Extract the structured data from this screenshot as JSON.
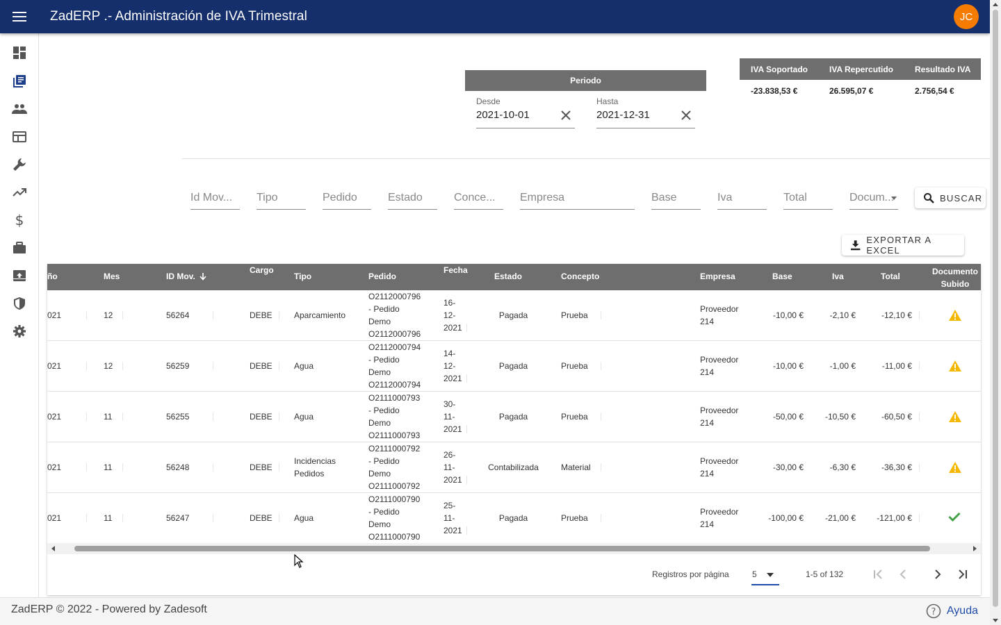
{
  "app": {
    "title": "ZadERP .- Administración de IVA Trimestral",
    "user_initials": "JC"
  },
  "sidebar": {
    "items": [
      {
        "icon": "dashboard-icon"
      },
      {
        "icon": "library-books-icon"
      },
      {
        "icon": "people-icon"
      },
      {
        "icon": "web-icon"
      },
      {
        "icon": "wrench-icon"
      },
      {
        "icon": "trending-up-icon"
      },
      {
        "icon": "dollar-icon"
      },
      {
        "icon": "briefcase-icon"
      },
      {
        "icon": "archive-icon"
      },
      {
        "icon": "shield-icon"
      },
      {
        "icon": "gear-icon"
      }
    ]
  },
  "periodo": {
    "title": "Periodo",
    "desde_label": "Desde",
    "desde_value": "2021-10-01",
    "hasta_label": "Hasta",
    "hasta_value": "2021-12-31"
  },
  "iva_summary": {
    "headers": [
      "IVA Soportado",
      "IVA Repercutido",
      "Resultado IVA"
    ],
    "values": [
      "-23.838,53 €",
      "26.595,07 €",
      "2.756,54 €"
    ]
  },
  "filters": {
    "labels": [
      "Id Mov...",
      "Tipo",
      "Pedido",
      "Estado",
      "Conce...",
      "Empresa",
      "Base",
      "Iva",
      "Total",
      "Docum..."
    ],
    "search_button": "BUSCAR",
    "export_button": "EXPORTAR A EXCEL"
  },
  "table": {
    "headers": {
      "anio": "ño",
      "mes": "Mes",
      "idmov": "ID Mov.",
      "cargo": "Cargo",
      "tipo": "Tipo",
      "pedido": "Pedido",
      "fecha": "Fecha",
      "estado": "Estado",
      "concepto": "Concepto",
      "empresa": "Empresa",
      "base": "Base",
      "iva": "Iva",
      "total": "Total",
      "doc1": "Documento",
      "doc2": "Subido"
    },
    "rows": [
      {
        "anio": "021",
        "mes": "12",
        "idmov": "56264",
        "cargo": "DEBE",
        "tipo1": "Aparcamiento",
        "tipo2": "",
        "ped1": "O2112000796",
        "ped2": "- Pedido",
        "ped3": "Demo",
        "ped4": "O2112000796",
        "f1": "16-",
        "f2": "12-",
        "f3": "2021",
        "estado": "Pagada",
        "concepto": "Prueba",
        "emp1": "Proveedor",
        "emp2": "214",
        "base": "-10,00 €",
        "iva": "-2,10 €",
        "total": "-12,10 €",
        "doc": "warning"
      },
      {
        "anio": "021",
        "mes": "12",
        "idmov": "56259",
        "cargo": "DEBE",
        "tipo1": "Agua",
        "tipo2": "",
        "ped1": "O2112000794",
        "ped2": "- Pedido",
        "ped3": "Demo",
        "ped4": "O2112000794",
        "f1": "14-",
        "f2": "12-",
        "f3": "2021",
        "estado": "Pagada",
        "concepto": "Prueba",
        "emp1": "Proveedor",
        "emp2": "214",
        "base": "-10,00 €",
        "iva": "-1,00 €",
        "total": "-11,00 €",
        "doc": "warning"
      },
      {
        "anio": "021",
        "mes": "11",
        "idmov": "56255",
        "cargo": "DEBE",
        "tipo1": "Agua",
        "tipo2": "",
        "ped1": "O2111000793",
        "ped2": "- Pedido",
        "ped3": "Demo",
        "ped4": "O2111000793",
        "f1": "30-",
        "f2": "11-",
        "f3": "2021",
        "estado": "Pagada",
        "concepto": "Prueba",
        "emp1": "Proveedor",
        "emp2": "214",
        "base": "-50,00 €",
        "iva": "-10,50 €",
        "total": "-60,50 €",
        "doc": "warning"
      },
      {
        "anio": "021",
        "mes": "11",
        "idmov": "56248",
        "cargo": "DEBE",
        "tipo1": "Incidencias",
        "tipo2": "Pedidos",
        "ped1": "O2111000792",
        "ped2": "- Pedido",
        "ped3": "Demo",
        "ped4": "O2111000792",
        "f1": "26-",
        "f2": "11-",
        "f3": "2021",
        "estado": "Contabilizada",
        "concepto": "Material",
        "emp1": "Proveedor",
        "emp2": "214",
        "base": "-30,00 €",
        "iva": "-6,30 €",
        "total": "-36,30 €",
        "doc": "warning"
      },
      {
        "anio": "021",
        "mes": "11",
        "idmov": "56247",
        "cargo": "DEBE",
        "tipo1": "Agua",
        "tipo2": "",
        "ped1": "O2111000790",
        "ped2": "- Pedido",
        "ped3": "Demo",
        "ped4": "O2111000790",
        "f1": "25-",
        "f2": "11-",
        "f3": "2021",
        "estado": "Pagada",
        "concepto": "Prueba",
        "emp1": "Proveedor",
        "emp2": "214",
        "base": "-100,00 €",
        "iva": "-21,00 €",
        "total": "-121,00 €",
        "doc": "check"
      }
    ]
  },
  "pagination": {
    "label": "Registros por página",
    "per_page": "5",
    "range": "1-5 of 132"
  },
  "footer": {
    "copyright": "ZadERP © 2022 - Powered by Zadesoft",
    "help": "Ayuda"
  },
  "colors": {
    "topbar": "#142f6b",
    "header_gray": "#6e6e6e",
    "warning": "#f5b800",
    "success": "#43a047",
    "avatar": "#f57c00"
  }
}
